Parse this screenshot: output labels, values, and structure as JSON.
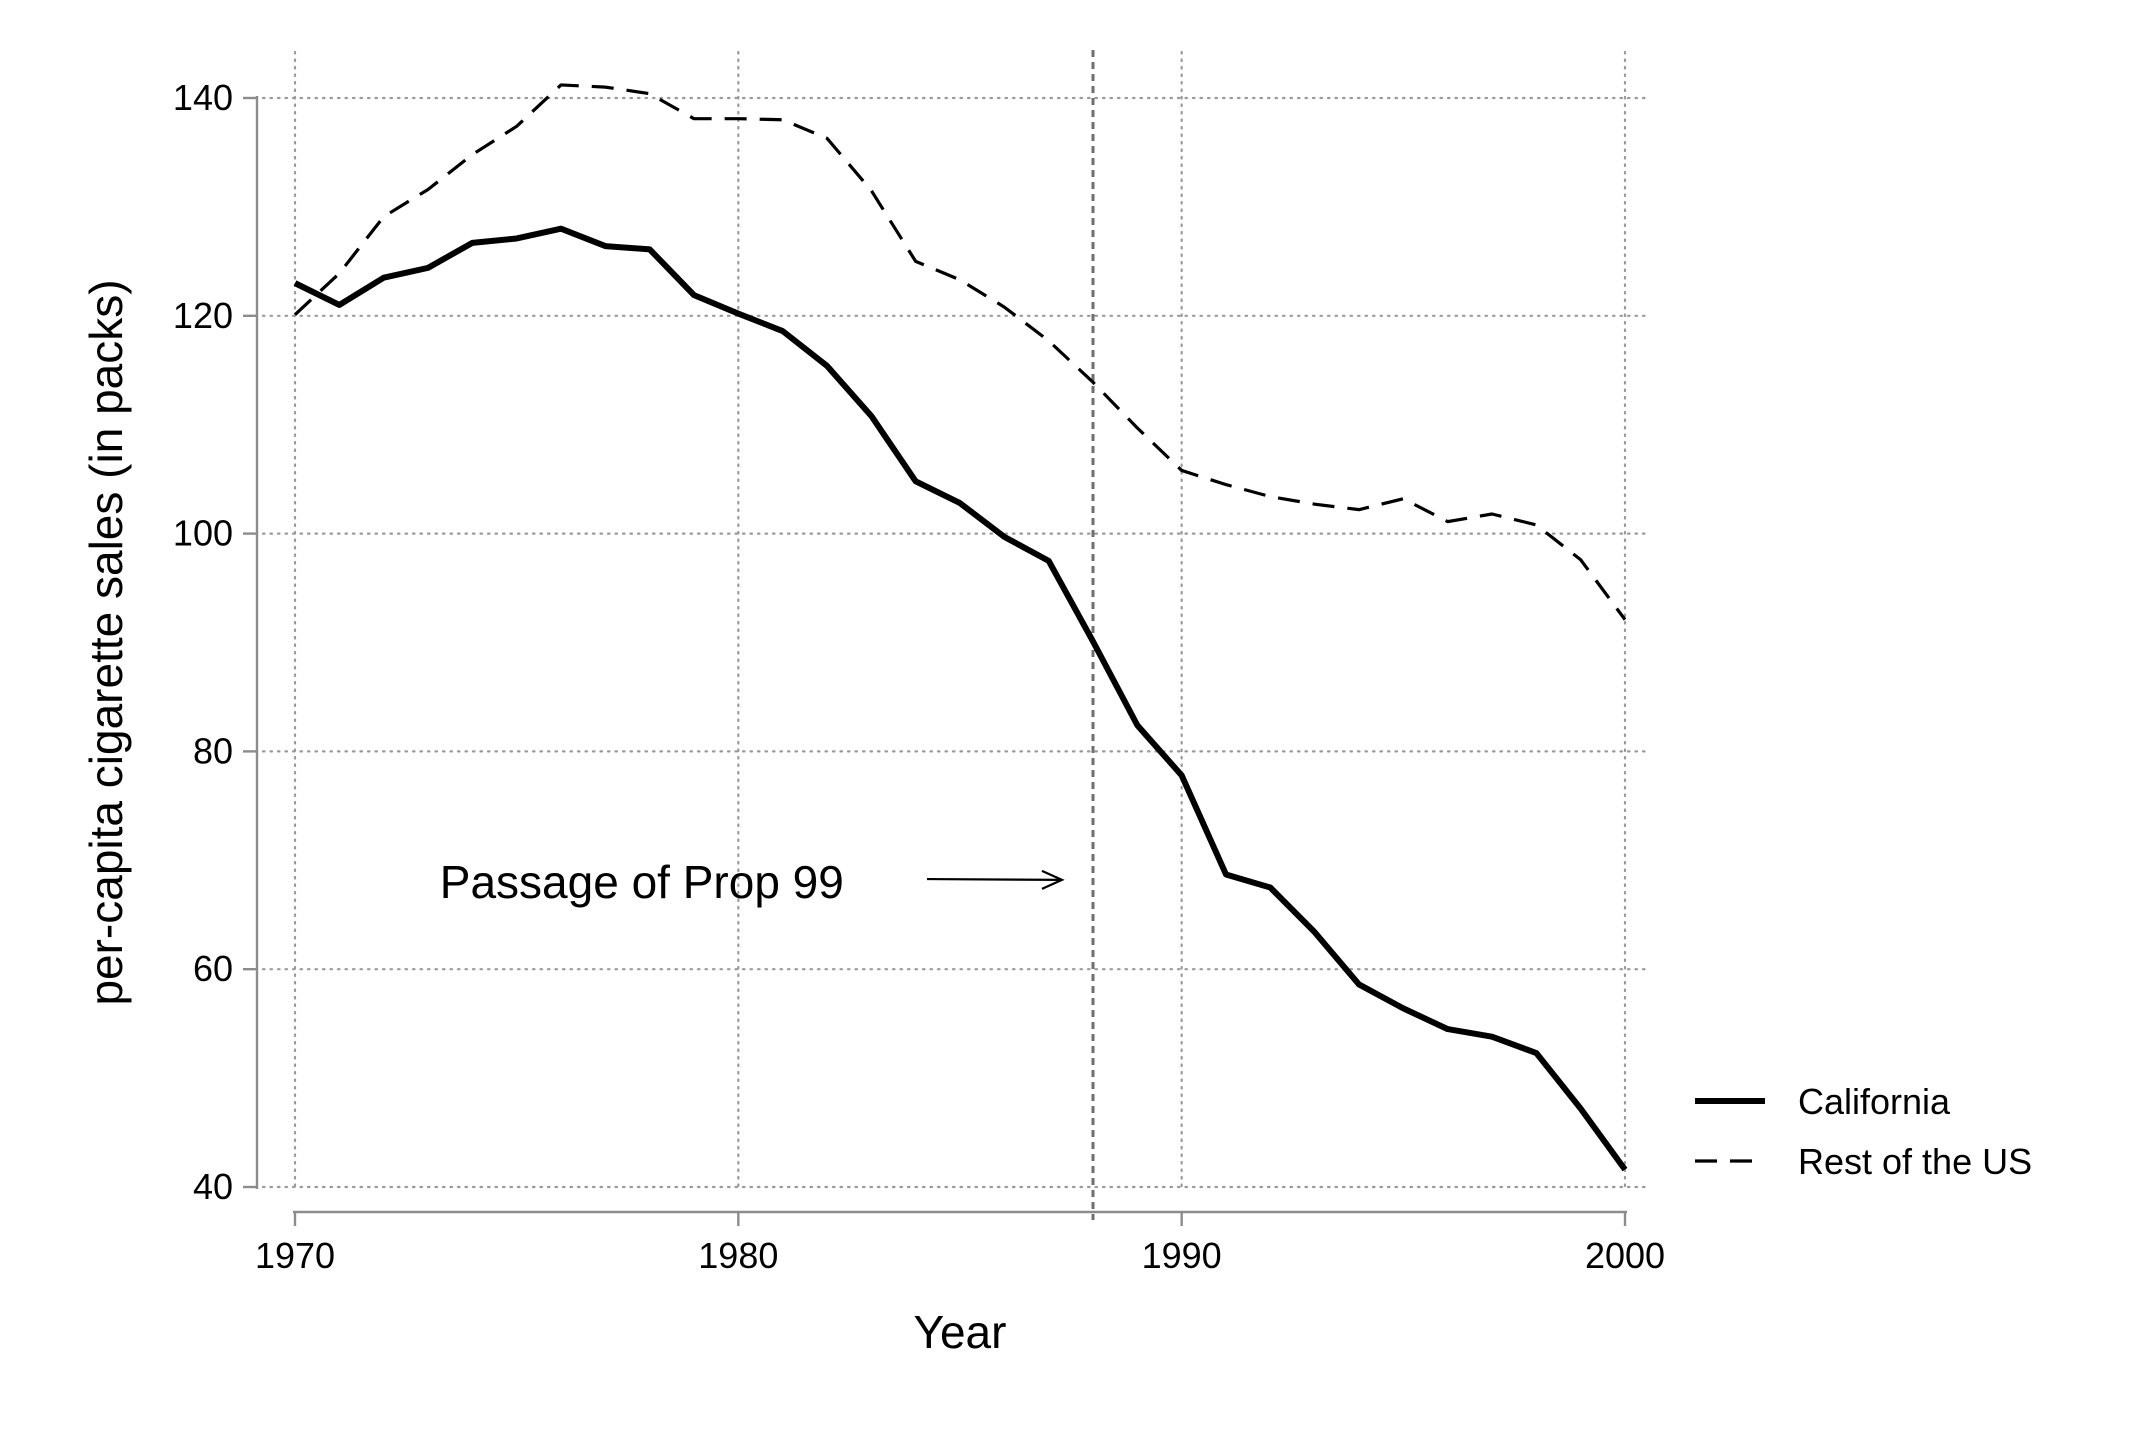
{
  "chart_data": {
    "type": "line",
    "title": "",
    "xlabel": "Year",
    "ylabel": "per-capita cigarette sales (in packs)",
    "xlim": [
      1970,
      2000
    ],
    "ylim": [
      40,
      140
    ],
    "xticks": [
      1970,
      1980,
      1990,
      2000
    ],
    "yticks": [
      40,
      60,
      80,
      100,
      120,
      140
    ],
    "xtick_labels": [
      "1970",
      "1980",
      "1990",
      "2000"
    ],
    "ytick_labels": [
      "40",
      "60",
      "80",
      "100",
      "120",
      "140"
    ],
    "grid": true,
    "legend_position": "right",
    "x": [
      1970,
      1971,
      1972,
      1973,
      1974,
      1975,
      1976,
      1977,
      1978,
      1979,
      1980,
      1981,
      1982,
      1983,
      1984,
      1985,
      1986,
      1987,
      1988,
      1989,
      1990,
      1991,
      1992,
      1993,
      1994,
      1995,
      1996,
      1997,
      1998,
      1999,
      2000
    ],
    "series": [
      {
        "name": "California",
        "style": "solid",
        "values": [
          123.0,
          121.0,
          123.5,
          124.4,
          126.7,
          127.1,
          128.0,
          126.4,
          126.1,
          121.9,
          120.2,
          118.6,
          115.4,
          110.8,
          104.8,
          102.8,
          99.7,
          97.5,
          90.1,
          82.4,
          77.8,
          68.7,
          67.5,
          63.4,
          58.6,
          56.4,
          54.5,
          53.8,
          52.3,
          47.2,
          41.6
        ]
      },
      {
        "name": "Rest of the US",
        "style": "dashed",
        "values": [
          120.1,
          123.9,
          129.1,
          131.6,
          134.8,
          137.4,
          141.2,
          141.0,
          140.4,
          138.1,
          138.1,
          138.0,
          136.3,
          131.5,
          125.0,
          123.3,
          120.8,
          117.7,
          113.9,
          109.7,
          105.8,
          104.5,
          103.4,
          102.7,
          102.2,
          103.2,
          101.1,
          101.8,
          100.8,
          97.6,
          92.1
        ]
      }
    ],
    "vline": {
      "x": 1988,
      "style": "dotted"
    },
    "annotations": [
      {
        "text": "Passage of Prop 99",
        "x": 1978.5,
        "y": 68,
        "arrow_to": [
          1987.3,
          68.2
        ]
      }
    ]
  }
}
